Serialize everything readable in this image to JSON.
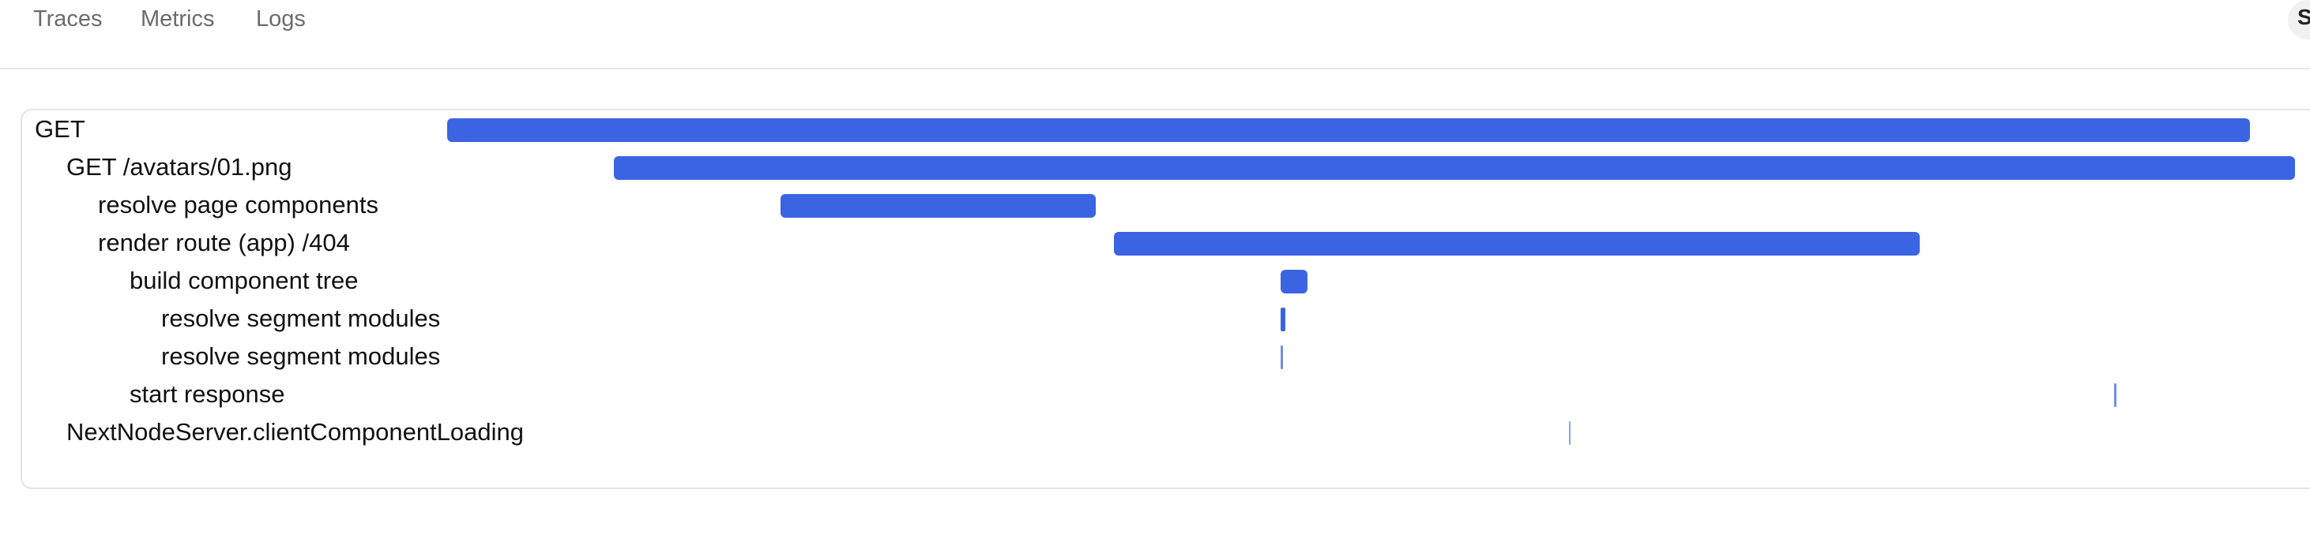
{
  "nav": {
    "tabs": [
      {
        "label": "Traces"
      },
      {
        "label": "Metrics"
      },
      {
        "label": "Logs"
      }
    ],
    "corner_partial_text": "S"
  },
  "trace": {
    "spans": [
      {
        "label": "GET",
        "depth": 0
      },
      {
        "label": "GET /avatars/01.png",
        "depth": 1
      },
      {
        "label": "resolve page components",
        "depth": 2
      },
      {
        "label": "render route (app) /404",
        "depth": 2
      },
      {
        "label": "build component tree",
        "depth": 3
      },
      {
        "label": "resolve segment modules",
        "depth": 4
      },
      {
        "label": "resolve segment modules",
        "depth": 4
      },
      {
        "label": "start response",
        "depth": 3
      },
      {
        "label": "NextNodeServer.clientComponentLoading",
        "depth": 1
      }
    ]
  },
  "colors": {
    "bar": "#3b64e2",
    "tab_text": "#6b6b6b"
  }
}
